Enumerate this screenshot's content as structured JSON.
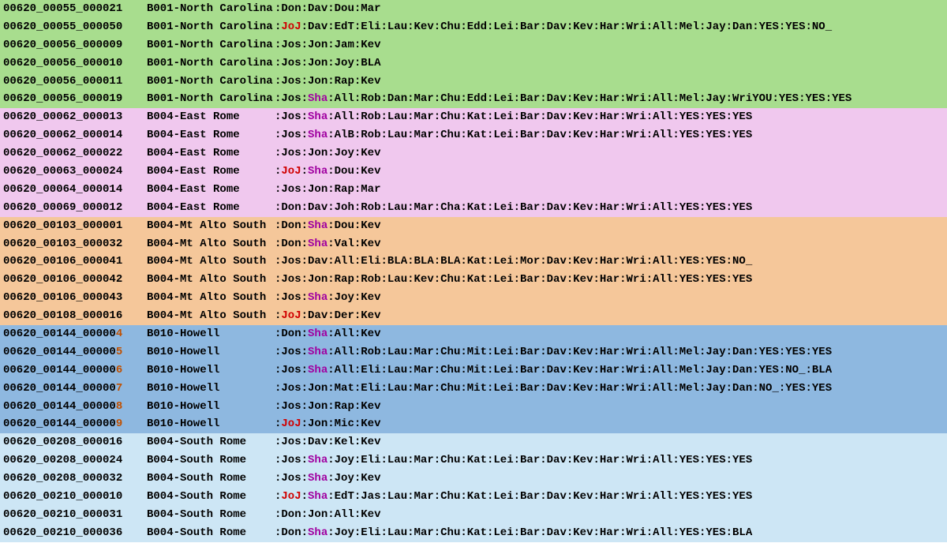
{
  "colors": {
    "group_bg": {
      "north_carolina": "#a8dd8e",
      "east_rome": "#f0c8ee",
      "mt_alto": "#f5c79a",
      "howell": "#8eb8e0",
      "south_rome": "#cde6f5"
    },
    "hl_red": "#d00000",
    "hl_purple": "#a000a0",
    "hl_orange": "#c05000",
    "text": "#000000"
  },
  "rows": [
    {
      "bg": "north_carolina",
      "id": "00620_00055_000021",
      "loc": "B001-North Carolina",
      "segs": [
        [
          "Don"
        ],
        [
          "Dav"
        ],
        [
          "Dou"
        ],
        [
          "Mar"
        ]
      ]
    },
    {
      "bg": "north_carolina",
      "id": "00620_00055_000050",
      "loc": "B001-North Carolina",
      "segs": [
        [
          "JoJ",
          "red"
        ],
        [
          "Dav"
        ],
        [
          "EdT"
        ],
        [
          "Eli"
        ],
        [
          "Lau"
        ],
        [
          "Kev"
        ],
        [
          "Chu"
        ],
        [
          "Edd"
        ],
        [
          "Lei"
        ],
        [
          "Bar"
        ],
        [
          "Dav"
        ],
        [
          "Kev"
        ],
        [
          "Har"
        ],
        [
          "Wri"
        ],
        [
          "All"
        ],
        [
          "Mel"
        ],
        [
          "Jay"
        ],
        [
          "Dan"
        ],
        [
          "YES"
        ],
        [
          "YES"
        ],
        [
          "NO_"
        ]
      ]
    },
    {
      "bg": "north_carolina",
      "id": "00620_00056_000009",
      "loc": "B001-North Carolina",
      "segs": [
        [
          "Jos"
        ],
        [
          "Jon"
        ],
        [
          "Jam"
        ],
        [
          "Kev"
        ]
      ]
    },
    {
      "bg": "north_carolina",
      "id": "00620_00056_000010",
      "loc": "B001-North Carolina",
      "segs": [
        [
          "Jos"
        ],
        [
          "Jon"
        ],
        [
          "Joy"
        ],
        [
          "BLA"
        ]
      ]
    },
    {
      "bg": "north_carolina",
      "id": "00620_00056_000011",
      "loc": "B001-North Carolina",
      "segs": [
        [
          "Jos"
        ],
        [
          "Jon"
        ],
        [
          "Rap"
        ],
        [
          "Kev"
        ]
      ]
    },
    {
      "bg": "north_carolina",
      "id": "00620_00056_000019",
      "loc": "B001-North Carolina",
      "segs": [
        [
          "Jos"
        ],
        [
          "Sha",
          "purple"
        ],
        [
          "All"
        ],
        [
          "Rob"
        ],
        [
          "Dan"
        ],
        [
          "Mar"
        ],
        [
          "Chu"
        ],
        [
          "Edd"
        ],
        [
          "Lei"
        ],
        [
          "Bar"
        ],
        [
          "Dav"
        ],
        [
          "Kev"
        ],
        [
          "Har"
        ],
        [
          "Wri"
        ],
        [
          "All"
        ],
        [
          "Mel"
        ],
        [
          "Jay"
        ],
        [
          "WriYOU"
        ],
        [
          "YES"
        ],
        [
          "YES"
        ],
        [
          "YES"
        ]
      ]
    },
    {
      "bg": "east_rome",
      "id": "00620_00062_000013",
      "loc": "B004-East Rome",
      "segs": [
        [
          "Jos"
        ],
        [
          "Sha",
          "purple"
        ],
        [
          "All"
        ],
        [
          "Rob"
        ],
        [
          "Lau"
        ],
        [
          "Mar"
        ],
        [
          "Chu"
        ],
        [
          "Kat"
        ],
        [
          "Lei"
        ],
        [
          "Bar"
        ],
        [
          "Dav"
        ],
        [
          "Kev"
        ],
        [
          "Har"
        ],
        [
          "Wri"
        ],
        [
          "All"
        ],
        [
          "YES"
        ],
        [
          "YES"
        ],
        [
          "YES"
        ]
      ]
    },
    {
      "bg": "east_rome",
      "id": "00620_00062_000014",
      "loc": "B004-East Rome",
      "segs": [
        [
          "Jos"
        ],
        [
          "Sha",
          "purple"
        ],
        [
          "AlB"
        ],
        [
          "Rob"
        ],
        [
          "Lau"
        ],
        [
          "Mar"
        ],
        [
          "Chu"
        ],
        [
          "Kat"
        ],
        [
          "Lei"
        ],
        [
          "Bar"
        ],
        [
          "Dav"
        ],
        [
          "Kev"
        ],
        [
          "Har"
        ],
        [
          "Wri"
        ],
        [
          "All"
        ],
        [
          "YES"
        ],
        [
          "YES"
        ],
        [
          "YES"
        ]
      ]
    },
    {
      "bg": "east_rome",
      "id": "00620_00062_000022",
      "loc": "B004-East Rome",
      "segs": [
        [
          "Jos"
        ],
        [
          "Jon"
        ],
        [
          "Joy"
        ],
        [
          "Kev"
        ]
      ]
    },
    {
      "bg": "east_rome",
      "id": "00620_00063_000024",
      "loc": "B004-East Rome",
      "segs": [
        [
          "JoJ",
          "red"
        ],
        [
          "Sha",
          "purple"
        ],
        [
          "Dou"
        ],
        [
          "Kev"
        ]
      ]
    },
    {
      "bg": "east_rome",
      "id": "00620_00064_000014",
      "loc": "B004-East Rome",
      "segs": [
        [
          "Jos"
        ],
        [
          "Jon"
        ],
        [
          "Rap"
        ],
        [
          "Mar"
        ]
      ]
    },
    {
      "bg": "east_rome",
      "id": "00620_00069_000012",
      "loc": "B004-East Rome",
      "segs": [
        [
          "Don"
        ],
        [
          "Dav"
        ],
        [
          "Joh"
        ],
        [
          "Rob"
        ],
        [
          "Lau"
        ],
        [
          "Mar"
        ],
        [
          "Cha"
        ],
        [
          "Kat"
        ],
        [
          "Lei"
        ],
        [
          "Bar"
        ],
        [
          "Dav"
        ],
        [
          "Kev"
        ],
        [
          "Har"
        ],
        [
          "Wri"
        ],
        [
          "All"
        ],
        [
          "YES"
        ],
        [
          "YES"
        ],
        [
          "YES"
        ]
      ]
    },
    {
      "bg": "mt_alto",
      "id": "00620_00103_000001",
      "loc": "B004-Mt Alto South",
      "segs": [
        [
          "Don"
        ],
        [
          "Sha",
          "purple"
        ],
        [
          "Dou"
        ],
        [
          "Kev"
        ]
      ]
    },
    {
      "bg": "mt_alto",
      "id": "00620_00103_000032",
      "loc": "B004-Mt Alto South",
      "segs": [
        [
          "Don"
        ],
        [
          "Sha",
          "purple"
        ],
        [
          "Val"
        ],
        [
          "Kev"
        ]
      ]
    },
    {
      "bg": "mt_alto",
      "id": "00620_00106_000041",
      "loc": "B004-Mt Alto South",
      "segs": [
        [
          "Jos"
        ],
        [
          "Dav"
        ],
        [
          "All"
        ],
        [
          "Eli"
        ],
        [
          "BLA"
        ],
        [
          "BLA"
        ],
        [
          "BLA"
        ],
        [
          "Kat"
        ],
        [
          "Lei"
        ],
        [
          "Mor"
        ],
        [
          "Dav"
        ],
        [
          "Kev"
        ],
        [
          "Har"
        ],
        [
          "Wri"
        ],
        [
          "All"
        ],
        [
          "YES"
        ],
        [
          "YES"
        ],
        [
          "NO_"
        ]
      ]
    },
    {
      "bg": "mt_alto",
      "id": "00620_00106_000042",
      "loc": "B004-Mt Alto South",
      "segs": [
        [
          "Jos"
        ],
        [
          "Jon"
        ],
        [
          "Rap"
        ],
        [
          "Rob"
        ],
        [
          "Lau"
        ],
        [
          "Kev"
        ],
        [
          "Chu"
        ],
        [
          "Kat"
        ],
        [
          "Lei"
        ],
        [
          "Bar"
        ],
        [
          "Dav"
        ],
        [
          "Kev"
        ],
        [
          "Har"
        ],
        [
          "Wri"
        ],
        [
          "All"
        ],
        [
          "YES"
        ],
        [
          "YES"
        ],
        [
          "YES"
        ]
      ]
    },
    {
      "bg": "mt_alto",
      "id": "00620_00106_000043",
      "loc": "B004-Mt Alto South",
      "segs": [
        [
          "Jos"
        ],
        [
          "Sha",
          "purple"
        ],
        [
          "Joy"
        ],
        [
          "Kev"
        ]
      ]
    },
    {
      "bg": "mt_alto",
      "id": "00620_00108_000016",
      "loc": "B004-Mt Alto South",
      "segs": [
        [
          "JoJ",
          "red"
        ],
        [
          "Dav"
        ],
        [
          "Der"
        ],
        [
          "Kev"
        ]
      ]
    },
    {
      "bg": "howell",
      "id": "00620_00144_000004",
      "id_tail_hl": "orange",
      "loc": "B010-Howell",
      "segs": [
        [
          "Don"
        ],
        [
          "Sha",
          "purple"
        ],
        [
          "All"
        ],
        [
          "Kev"
        ]
      ]
    },
    {
      "bg": "howell",
      "id": "00620_00144_000005",
      "id_tail_hl": "orange",
      "loc": "B010-Howell",
      "segs": [
        [
          "Jos"
        ],
        [
          "Sha",
          "purple"
        ],
        [
          "All"
        ],
        [
          "Rob"
        ],
        [
          "Lau"
        ],
        [
          "Mar"
        ],
        [
          "Chu"
        ],
        [
          "Mit"
        ],
        [
          "Lei"
        ],
        [
          "Bar"
        ],
        [
          "Dav"
        ],
        [
          "Kev"
        ],
        [
          "Har"
        ],
        [
          "Wri"
        ],
        [
          "All"
        ],
        [
          "Mel"
        ],
        [
          "Jay"
        ],
        [
          "Dan"
        ],
        [
          "YES"
        ],
        [
          "YES"
        ],
        [
          "YES"
        ]
      ]
    },
    {
      "bg": "howell",
      "id": "00620_00144_000006",
      "id_tail_hl": "orange",
      "loc": "B010-Howell",
      "segs": [
        [
          "Jos"
        ],
        [
          "Sha",
          "purple"
        ],
        [
          "All"
        ],
        [
          "Eli"
        ],
        [
          "Lau"
        ],
        [
          "Mar"
        ],
        [
          "Chu"
        ],
        [
          "Mit"
        ],
        [
          "Lei"
        ],
        [
          "Bar"
        ],
        [
          "Dav"
        ],
        [
          "Kev"
        ],
        [
          "Har"
        ],
        [
          "Wri"
        ],
        [
          "All"
        ],
        [
          "Mel"
        ],
        [
          "Jay"
        ],
        [
          "Dan"
        ],
        [
          "YES"
        ],
        [
          "NO_"
        ],
        [
          "BLA"
        ]
      ]
    },
    {
      "bg": "howell",
      "id": "00620_00144_000007",
      "id_tail_hl": "orange",
      "loc": "B010-Howell",
      "segs": [
        [
          "Jos"
        ],
        [
          "Jon"
        ],
        [
          "Mat"
        ],
        [
          "Eli"
        ],
        [
          "Lau"
        ],
        [
          "Mar"
        ],
        [
          "Chu"
        ],
        [
          "Mit"
        ],
        [
          "Lei"
        ],
        [
          "Bar"
        ],
        [
          "Dav"
        ],
        [
          "Kev"
        ],
        [
          "Har"
        ],
        [
          "Wri"
        ],
        [
          "All"
        ],
        [
          "Mel"
        ],
        [
          "Jay"
        ],
        [
          "Dan"
        ],
        [
          "NO_"
        ],
        [
          "YES"
        ],
        [
          "YES"
        ]
      ]
    },
    {
      "bg": "howell",
      "id": "00620_00144_000008",
      "id_tail_hl": "orange",
      "loc": "B010-Howell",
      "segs": [
        [
          "Jos"
        ],
        [
          "Jon"
        ],
        [
          "Rap"
        ],
        [
          "Kev"
        ]
      ]
    },
    {
      "bg": "howell",
      "id": "00620_00144_000009",
      "id_tail_hl": "orange",
      "loc": "B010-Howell",
      "segs": [
        [
          "JoJ",
          "red"
        ],
        [
          "Jon"
        ],
        [
          "Mic"
        ],
        [
          "Kev"
        ]
      ]
    },
    {
      "bg": "south_rome",
      "id": "00620_00208_000016",
      "loc": "B004-South Rome",
      "segs": [
        [
          "Jos"
        ],
        [
          "Dav"
        ],
        [
          "Kel"
        ],
        [
          "Kev"
        ]
      ]
    },
    {
      "bg": "south_rome",
      "id": "00620_00208_000024",
      "loc": "B004-South Rome",
      "segs": [
        [
          "Jos"
        ],
        [
          "Sha",
          "purple"
        ],
        [
          "Joy"
        ],
        [
          "Eli"
        ],
        [
          "Lau"
        ],
        [
          "Mar"
        ],
        [
          "Chu"
        ],
        [
          "Kat"
        ],
        [
          "Lei"
        ],
        [
          "Bar"
        ],
        [
          "Dav"
        ],
        [
          "Kev"
        ],
        [
          "Har"
        ],
        [
          "Wri"
        ],
        [
          "All"
        ],
        [
          "YES"
        ],
        [
          "YES"
        ],
        [
          "YES"
        ]
      ]
    },
    {
      "bg": "south_rome",
      "id": "00620_00208_000032",
      "loc": "B004-South Rome",
      "segs": [
        [
          "Jos"
        ],
        [
          "Sha",
          "purple"
        ],
        [
          "Joy"
        ],
        [
          "Kev"
        ]
      ]
    },
    {
      "bg": "south_rome",
      "id": "00620_00210_000010",
      "loc": "B004-South Rome",
      "segs": [
        [
          "JoJ",
          "red"
        ],
        [
          "Sha",
          "purple"
        ],
        [
          "EdT"
        ],
        [
          "Jas"
        ],
        [
          "Lau"
        ],
        [
          "Mar"
        ],
        [
          "Chu"
        ],
        [
          "Kat"
        ],
        [
          "Lei"
        ],
        [
          "Bar"
        ],
        [
          "Dav"
        ],
        [
          "Kev"
        ],
        [
          "Har"
        ],
        [
          "Wri"
        ],
        [
          "All"
        ],
        [
          "YES"
        ],
        [
          "YES"
        ],
        [
          "YES"
        ]
      ]
    },
    {
      "bg": "south_rome",
      "id": "00620_00210_000031",
      "loc": "B004-South Rome",
      "segs": [
        [
          "Don"
        ],
        [
          "Jon"
        ],
        [
          "All"
        ],
        [
          "Kev"
        ]
      ]
    },
    {
      "bg": "south_rome",
      "id": "00620_00210_000036",
      "loc": "B004-South Rome",
      "segs": [
        [
          "Don"
        ],
        [
          "Sha",
          "purple"
        ],
        [
          "Joy"
        ],
        [
          "Eli"
        ],
        [
          "Lau"
        ],
        [
          "Mar"
        ],
        [
          "Chu"
        ],
        [
          "Kat"
        ],
        [
          "Lei"
        ],
        [
          "Bar"
        ],
        [
          "Dav"
        ],
        [
          "Kev"
        ],
        [
          "Har"
        ],
        [
          "Wri"
        ],
        [
          "All"
        ],
        [
          "YES"
        ],
        [
          "YES"
        ],
        [
          "BLA"
        ]
      ]
    }
  ]
}
